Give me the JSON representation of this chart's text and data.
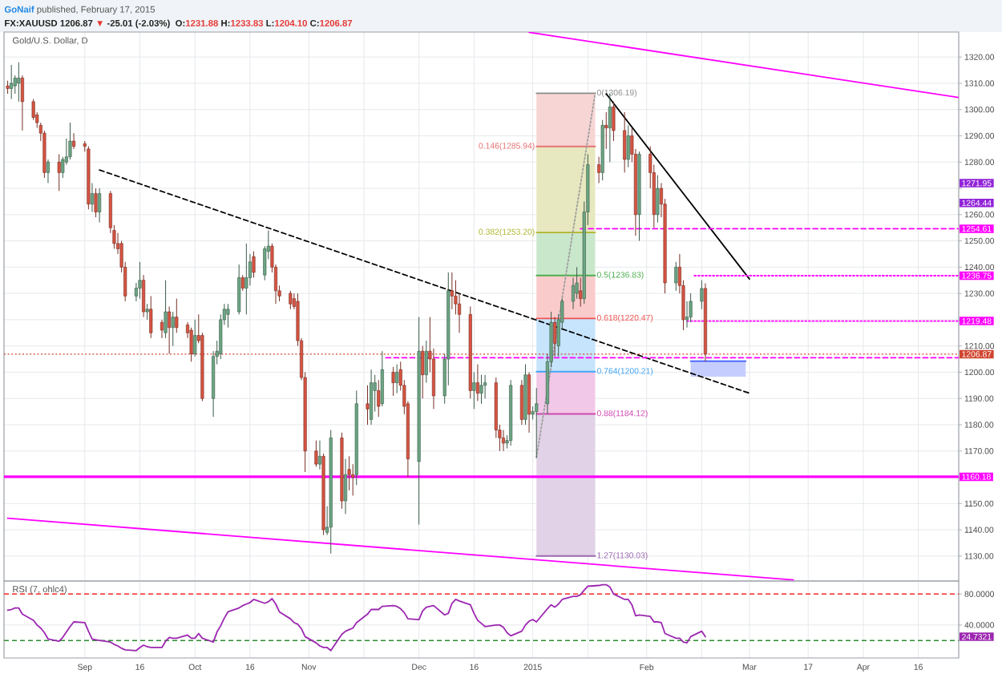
{
  "chart_data": [
    {
      "type": "candlestick",
      "title": "Gold/U.S. Dollar, D",
      "annotations": [
        "GoNaif",
        "published, February 17, 2015",
        "FX:XAUUSD",
        "1206.87",
        "▼",
        "-25.01 (-2.03%)",
        "O:",
        "1231.88",
        "H:",
        "1233.83",
        "L:",
        "1204.10",
        "C:",
        "1206.87",
        "1271.95",
        "1264.44"
      ],
      "x": [
        "2014-08-11",
        "2014-08-12",
        "2014-08-13",
        "2014-08-14",
        "2014-08-15",
        "2014-08-18",
        "2014-08-19",
        "2014-08-20",
        "2014-08-21",
        "2014-08-22",
        "2014-08-25",
        "2014-08-26",
        "2014-08-27",
        "2014-08-28",
        "2014-08-29",
        "2014-09-01",
        "2014-09-02",
        "2014-09-03",
        "2014-09-04",
        "2014-09-05",
        "2014-09-08",
        "2014-09-09",
        "2014-09-10",
        "2014-09-11",
        "2014-09-12",
        "2014-09-15",
        "2014-09-16",
        "2014-09-17",
        "2014-09-18",
        "2014-09-19",
        "2014-09-22",
        "2014-09-23",
        "2014-09-24",
        "2014-09-25",
        "2014-09-26",
        "2014-09-29",
        "2014-09-30",
        "2014-10-01",
        "2014-10-02",
        "2014-10-03",
        "2014-10-06",
        "2014-10-07",
        "2014-10-08",
        "2014-10-09",
        "2014-10-10",
        "2014-10-13",
        "2014-10-14",
        "2014-10-15",
        "2014-10-16",
        "2014-10-17",
        "2014-10-20",
        "2014-10-21",
        "2014-10-22",
        "2014-10-23",
        "2014-10-24",
        "2014-10-27",
        "2014-10-28",
        "2014-10-29",
        "2014-10-30",
        "2014-10-31",
        "2014-11-03",
        "2014-11-04",
        "2014-11-05",
        "2014-11-06",
        "2014-11-07",
        "2014-11-10",
        "2014-11-11",
        "2014-11-12",
        "2014-11-13",
        "2014-11-14",
        "2014-11-17",
        "2014-11-18",
        "2014-11-19",
        "2014-11-20",
        "2014-11-21",
        "2014-11-24",
        "2014-11-25",
        "2014-11-26",
        "2014-11-27",
        "2014-11-28",
        "2014-12-01",
        "2014-12-02",
        "2014-12-03",
        "2014-12-04",
        "2014-12-05",
        "2014-12-08",
        "2014-12-09",
        "2014-12-10",
        "2014-12-11",
        "2014-12-12",
        "2014-12-15",
        "2014-12-16",
        "2014-12-17",
        "2014-12-18",
        "2014-12-19",
        "2014-12-22",
        "2014-12-23",
        "2014-12-24",
        "2014-12-25",
        "2014-12-26",
        "2014-12-29",
        "2014-12-30",
        "2014-12-31",
        "2015-01-01",
        "2015-01-02",
        "2015-01-05",
        "2015-01-06",
        "2015-01-07",
        "2015-01-08",
        "2015-01-09",
        "2015-01-12",
        "2015-01-13",
        "2015-01-14",
        "2015-01-15",
        "2015-01-16",
        "2015-01-19",
        "2015-01-20",
        "2015-01-21",
        "2015-01-22",
        "2015-01-23",
        "2015-01-26",
        "2015-01-27",
        "2015-01-28",
        "2015-01-29",
        "2015-01-30",
        "2015-02-02",
        "2015-02-03",
        "2015-02-04",
        "2015-02-05",
        "2015-02-06",
        "2015-02-09",
        "2015-02-10",
        "2015-02-11",
        "2015-02-12",
        "2015-02-13",
        "2015-02-16",
        "2015-02-17"
      ],
      "ohlc": [
        [
          1309,
          1311,
          1306,
          1308
        ],
        [
          1308,
          1317,
          1304,
          1310
        ],
        [
          1309,
          1313,
          1306,
          1312
        ],
        [
          1310,
          1318,
          1303,
          1312
        ],
        [
          1312,
          1313,
          1292,
          1303
        ],
        [
          1303,
          1304,
          1296,
          1297
        ],
        [
          1298,
          1299,
          1293,
          1295
        ],
        [
          1294,
          1295,
          1288,
          1291
        ],
        [
          1291,
          1292,
          1274,
          1276
        ],
        [
          1276,
          1281,
          1272,
          1280
        ],
        [
          1280,
          1283,
          1269,
          1276
        ],
        [
          1276,
          1282,
          1274,
          1281
        ],
        [
          1280,
          1289,
          1279,
          1282
        ],
        [
          1282,
          1295,
          1281,
          1288
        ],
        [
          1288,
          1291,
          1285,
          1286
        ],
        [
          1287,
          1288,
          1284,
          1286
        ],
        [
          1285,
          1286,
          1262,
          1264
        ],
        [
          1264,
          1272,
          1261,
          1268
        ],
        [
          1268,
          1270,
          1259,
          1261
        ],
        [
          1261,
          1270,
          1257,
          1268
        ],
        [
          1268,
          1269,
          1253,
          1255
        ],
        [
          1254,
          1256,
          1247,
          1249
        ],
        [
          1249,
          1253,
          1245,
          1247
        ],
        [
          1249,
          1250,
          1238,
          1240
        ],
        [
          1240,
          1242,
          1227,
          1229
        ],
        [
          1229,
          1234,
          1227,
          1232
        ],
        [
          1232,
          1242,
          1228,
          1235
        ],
        [
          1235,
          1237,
          1221,
          1223
        ],
        [
          1223,
          1226,
          1220,
          1224
        ],
        [
          1224,
          1229,
          1213,
          1215
        ],
        [
          1219,
          1220,
          1213,
          1216
        ],
        [
          1215,
          1235,
          1213,
          1223
        ],
        [
          1223,
          1225,
          1207,
          1217
        ],
        [
          1217,
          1223,
          1210,
          1221
        ],
        [
          1221,
          1228,
          1215,
          1217
        ],
        [
          1218,
          1219,
          1213,
          1215
        ],
        [
          1216,
          1217,
          1204,
          1207
        ],
        [
          1207,
          1220,
          1206,
          1214
        ],
        [
          1214,
          1222,
          1211,
          1212
        ],
        [
          1214,
          1215,
          1189,
          1190
        ],
        [
          1190,
          1208,
          1183,
          1206
        ],
        [
          1206,
          1212,
          1203,
          1208
        ],
        [
          1207,
          1222,
          1205,
          1220
        ],
        [
          1220,
          1226,
          1218,
          1224
        ],
        [
          1222,
          1226,
          1217,
          1224
        ],
        [
          1223,
          1241,
          1222,
          1236
        ],
        [
          1236,
          1237,
          1231,
          1232
        ],
        [
          1232,
          1249,
          1222,
          1236
        ],
        [
          1236,
          1245,
          1233,
          1242
        ],
        [
          1244,
          1246,
          1236,
          1238
        ],
        [
          1237,
          1248,
          1235,
          1247
        ],
        [
          1246,
          1254,
          1243,
          1248
        ],
        [
          1248,
          1249,
          1238,
          1240
        ],
        [
          1240,
          1241,
          1226,
          1231
        ],
        [
          1231,
          1233,
          1227,
          1229
        ],
        [
          1230,
          1231,
          1224,
          1226
        ],
        [
          1228,
          1230,
          1224,
          1225
        ],
        [
          1227,
          1230,
          1210,
          1212
        ],
        [
          1212,
          1213,
          1197,
          1198
        ],
        [
          1198,
          1200,
          1162,
          1170
        ],
        [
          1170,
          1174,
          1164,
          1165
        ],
        [
          1165,
          1174,
          1163,
          1168
        ],
        [
          1168,
          1169,
          1138,
          1140
        ],
        [
          1139,
          1149,
          1138,
          1141
        ],
        [
          1141,
          1178,
          1131,
          1175
        ],
        [
          1175,
          1177,
          1148,
          1151
        ],
        [
          1151,
          1167,
          1146,
          1161
        ],
        [
          1163,
          1168,
          1155,
          1161
        ],
        [
          1161,
          1165,
          1153,
          1160
        ],
        [
          1161,
          1193,
          1157,
          1188
        ],
        [
          1188,
          1195,
          1180,
          1186
        ],
        [
          1182,
          1201,
          1180,
          1196
        ],
        [
          1193,
          1199,
          1185,
          1196
        ],
        [
          1193,
          1197,
          1183,
          1187
        ],
        [
          1188,
          1208,
          1187,
          1201
        ],
        [
          1200,
          1202,
          1191,
          1196
        ],
        [
          1196,
          1203,
          1192,
          1200
        ],
        [
          1201,
          1204,
          1193,
          1195
        ],
        [
          1195,
          1197,
          1184,
          1187
        ],
        [
          1188,
          1189,
          1160,
          1167
        ],
        [
          1166,
          1221,
          1142,
          1208
        ],
        [
          1208,
          1210,
          1190,
          1199
        ],
        [
          1199,
          1212,
          1196,
          1208
        ],
        [
          1208,
          1221,
          1200,
          1205
        ],
        [
          1205,
          1209,
          1186,
          1191
        ],
        [
          1191,
          1207,
          1188,
          1205
        ],
        [
          1205,
          1238,
          1195,
          1231
        ],
        [
          1231,
          1238,
          1224,
          1229
        ],
        [
          1229,
          1235,
          1222,
          1226
        ],
        [
          1226,
          1230,
          1215,
          1222
        ],
        [
          1222,
          1225,
          1190,
          1193
        ],
        [
          1193,
          1200,
          1186,
          1196
        ],
        [
          1196,
          1203,
          1189,
          1192
        ],
        [
          1192,
          1199,
          1188,
          1195
        ],
        [
          1195,
          1199,
          1190,
          1196
        ],
        [
          1196,
          1198,
          1175,
          1178
        ],
        [
          1178,
          1180,
          1170,
          1175
        ],
        [
          1175,
          1178,
          1170,
          1173
        ],
        [
          1173,
          1176,
          1171,
          1174
        ],
        [
          1174,
          1197,
          1172,
          1195
        ],
        [
          1195,
          1197,
          1180,
          1182
        ],
        [
          1182,
          1203,
          1180,
          1199
        ],
        [
          1199,
          1200,
          1177,
          1184
        ],
        [
          1184,
          1187,
          1182,
          1185
        ],
        [
          1185,
          1194,
          1167.47,
          1188
        ],
        [
          1188,
          1207,
          1184,
          1204
        ],
        [
          1204,
          1223,
          1202,
          1219
        ],
        [
          1219,
          1221,
          1206,
          1211
        ],
        [
          1210,
          1222,
          1206,
          1220
        ],
        [
          1219,
          1228,
          1216,
          1227
        ],
        [
          1227,
          1236,
          1224,
          1233
        ],
        [
          1230,
          1240,
          1228,
          1234
        ],
        [
          1231,
          1236,
          1225,
          1228
        ],
        [
          1228,
          1265,
          1226,
          1261
        ],
        [
          1261,
          1283,
          1256,
          1279
        ],
        [
          1279,
          1282,
          1272,
          1276
        ],
        [
          1276,
          1296,
          1273,
          1294
        ],
        [
          1294,
          1299,
          1285,
          1293
        ],
        [
          1293,
          1306.19,
          1280,
          1301
        ],
        [
          1301,
          1303,
          1288,
          1292
        ],
        [
          1292,
          1299,
          1276,
          1281
        ],
        [
          1281,
          1294,
          1278,
          1290
        ],
        [
          1290,
          1293,
          1280,
          1283
        ],
        [
          1283,
          1285,
          1252,
          1260
        ],
        [
          1260,
          1284,
          1250,
          1283
        ],
        [
          1283,
          1286,
          1270,
          1276
        ],
        [
          1276,
          1279,
          1255,
          1260
        ],
        [
          1260,
          1275,
          1257,
          1270
        ],
        [
          1270,
          1272,
          1259,
          1264
        ],
        [
          1264,
          1266,
          1230,
          1234
        ],
        [
          1234,
          1242,
          1231,
          1240
        ],
        [
          1240,
          1245,
          1230,
          1233
        ],
        [
          1233,
          1235,
          1216,
          1220
        ],
        [
          1220,
          1227,
          1217,
          1221
        ],
        [
          1221,
          1230,
          1219,
          1227
        ],
        [
          1227,
          1235,
          1224,
          1231.88
        ],
        [
          1231.88,
          1233.83,
          1204.1,
          1206.87
        ]
      ],
      "colors": [
        "#d75442",
        "#6ba583",
        "#6ba583",
        "#6ba583",
        "#d75442",
        "#d75442",
        "#d75442",
        "#d75442",
        "#d75442",
        "#6ba583",
        "#d75442",
        "#6ba583",
        "#6ba583",
        "#6ba583",
        "#d75442",
        "#d75442",
        "#d75442",
        "#6ba583",
        "#d75442",
        "#6ba583",
        "#d75442",
        "#d75442",
        "#d75442",
        "#d75442",
        "#d75442",
        "#6ba583",
        "#6ba583",
        "#d75442",
        "#6ba583",
        "#d75442",
        "#d75442",
        "#6ba583",
        "#d75442",
        "#6ba583",
        "#d75442",
        "#d75442",
        "#d75442",
        "#6ba583",
        "#d75442",
        "#d75442",
        "#6ba583",
        "#6ba583",
        "#6ba583",
        "#6ba583",
        "#6ba583",
        "#6ba583",
        "#d75442",
        "#6ba583",
        "#6ba583",
        "#d75442",
        "#6ba583",
        "#6ba583",
        "#d75442",
        "#d75442",
        "#d75442",
        "#d75442",
        "#d75442",
        "#d75442",
        "#d75442",
        "#d75442",
        "#d75442",
        "#6ba583",
        "#d75442",
        "#6ba583",
        "#6ba583",
        "#d75442",
        "#6ba583",
        "#d75442",
        "#d75442",
        "#6ba583",
        "#d75442",
        "#6ba583",
        "#6ba583",
        "#d75442",
        "#6ba583",
        "#d75442",
        "#6ba583",
        "#d75442",
        "#d75442",
        "#d75442",
        "#6ba583",
        "#d75442",
        "#6ba583",
        "#d75442",
        "#d75442",
        "#6ba583",
        "#6ba583",
        "#d75442",
        "#d75442",
        "#d75442",
        "#d75442",
        "#6ba583",
        "#d75442",
        "#6ba583",
        "#6ba583",
        "#d75442",
        "#d75442",
        "#d75442",
        "#6ba583",
        "#6ba583",
        "#d75442",
        "#6ba583",
        "#d75442",
        "#6ba583",
        "#6ba583",
        "#6ba583",
        "#6ba583",
        "#d75442",
        "#6ba583",
        "#6ba583",
        "#6ba583",
        "#6ba583",
        "#d75442",
        "#6ba583",
        "#6ba583",
        "#d75442",
        "#6ba583",
        "#d75442",
        "#6ba583",
        "#d75442",
        "#d75442",
        "#6ba583",
        "#d75442",
        "#d75442",
        "#6ba583",
        "#d75442",
        "#d75442",
        "#6ba583",
        "#d75442",
        "#d75442",
        "#6ba583",
        "#d75442",
        "#d75442",
        "#6ba583",
        "#6ba583",
        "#6ba583",
        "#d75442"
      ],
      "series": [
        {
          "type": "line",
          "x": [
            "2015-01-02",
            "2015-01-18"
          ],
          "values": [
            1306.19,
            1306.19
          ],
          "color": "#8c8c8c",
          "name": "0(1306.19)"
        },
        {
          "type": "line",
          "x": [
            "2015-01-02",
            "2015-01-18"
          ],
          "values": [
            1285.94,
            1285.94
          ],
          "lower": [
            1285.94,
            1285.94
          ],
          "upper": [
            1306.19,
            1306.19
          ],
          "color": "#e57373",
          "name": "0.146(1285.94)"
        },
        {
          "type": "line",
          "x": [
            "2015-01-02",
            "2015-01-18"
          ],
          "values": [
            1253.2,
            1253.2
          ],
          "lower": [
            1253.2,
            1253.2
          ],
          "upper": [
            1285.94,
            1285.94
          ],
          "color": "#afb42b",
          "name": "0.382(1253.20)"
        },
        {
          "type": "line",
          "x": [
            "2015-01-02",
            "2015-01-18"
          ],
          "values": [
            1236.83,
            1236.83
          ],
          "lower": [
            1236.83,
            1236.83
          ],
          "upper": [
            1253.2,
            1253.2
          ],
          "color": "#4caf50",
          "name": "0.5(1236.83)"
        },
        {
          "type": "line",
          "x": [
            "2015-01-02",
            "2015-01-18"
          ],
          "values": [
            1220.47,
            1220.47
          ],
          "lower": [
            1220.47,
            1220.47
          ],
          "upper": [
            1236.83,
            1236.83
          ],
          "color": "#ef5350",
          "name": "0.618(1220.47)"
        },
        {
          "type": "line",
          "x": [
            "2015-01-02",
            "2015-01-18"
          ],
          "values": [
            1200.21,
            1200.21
          ],
          "lower": [
            1200.21,
            1200.21
          ],
          "upper": [
            1220.47,
            1220.47
          ],
          "color": "#42a5f5",
          "name": "0.764(1200.21)"
        },
        {
          "type": "line",
          "x": [
            "2015-01-02",
            "2015-01-18"
          ],
          "values": [
            1184.12,
            1184.12
          ],
          "lower": [
            1184.12,
            1184.12
          ],
          "upper": [
            1200.21,
            1200.21
          ],
          "color": "#d048b0",
          "name": "0.88(1184.12)"
        },
        {
          "type": "line",
          "x": [
            "2015-01-02",
            "2015-01-18"
          ],
          "values": [
            1130.03,
            1130.03
          ],
          "lower": [
            1130.03,
            1130.03
          ],
          "upper": [
            1184.12,
            1184.12
          ],
          "color": "#9c6ab0",
          "name": "1.27(1130.03)"
        },
        {
          "type": "line",
          "x": [
            "2015-01-02",
            "2015-01-18"
          ],
          "values": [
            1167.47,
            1306.19
          ],
          "color": "#9e9e9e",
          "line_style": "dotted"
        },
        {
          "type": "line",
          "x": [
            "2014-09-05",
            "2015-03-01"
          ],
          "values": [
            1277,
            1192
          ],
          "color": "#000000",
          "line_style": "dashed"
        },
        {
          "type": "line",
          "x": [
            "2015-01-21",
            "2015-03-01"
          ],
          "values": [
            1306,
            1235.5
          ],
          "color": "#000000",
          "line_style": "solid"
        },
        {
          "type": "line",
          "x": [
            "2014-12-31",
            "2015-04-27"
          ],
          "values": [
            1329.4,
            1304.6
          ],
          "color": "#ff00ff",
          "line_style": "solid"
        },
        {
          "type": "line",
          "x": [
            "2014-08-11",
            "2015-03-13"
          ],
          "values": [
            1144.4,
            1120.9
          ],
          "color": "#ff00ff",
          "line_style": "solid"
        },
        {
          "type": "line",
          "x": [
            "2015-01-14",
            "2015-04-27"
          ],
          "values": [
            1254.61,
            1254.61
          ],
          "color": "#ff00ff",
          "line_style": "dashed",
          "name": "1254.61"
        },
        {
          "type": "line",
          "x": [
            "2015-02-14",
            "2015-04-27"
          ],
          "values": [
            1236.75,
            1236.75
          ],
          "color": "#ff00ff",
          "line_style": "dotted",
          "name": "1236.75"
        },
        {
          "type": "line",
          "x": [
            "2015-02-12",
            "2015-04-27"
          ],
          "values": [
            1219.48,
            1219.48
          ],
          "color": "#ff00ff",
          "line_style": "dotted",
          "name": "1219.48"
        },
        {
          "type": "line",
          "x": [
            "2014-11-22",
            "2015-04-27"
          ],
          "values": [
            1205.5,
            1205.5
          ],
          "color": "#ff00ff",
          "line_style": "dashed"
        },
        {
          "type": "line",
          "x": [
            "2015-02-13",
            "2015-02-28"
          ],
          "values": [
            1204.2,
            1204.2
          ],
          "lower": [
            1198.3,
            1198.3
          ],
          "upper": [
            1204.2,
            1204.2
          ],
          "color": "#3d5afe"
        }
      ],
      "ref_lines": [
        {
          "axis": "y",
          "value": 1206.87,
          "label": "1206.87",
          "color": "#d0452f",
          "line_style": "dotted"
        },
        {
          "axis": "y",
          "value": 1160.18,
          "label": "1160.18",
          "color": "#ff00ff",
          "line_style": "solid"
        }
      ],
      "xlim": [
        "2014-08-10",
        "2015-04-27"
      ],
      "xticks": [
        {
          "value": "2014-09-01",
          "label": null
        },
        {
          "value": "2014-09-16",
          "label": null
        },
        {
          "value": "2014-10-01",
          "label": null
        },
        {
          "value": "2014-10-16",
          "label": null
        },
        {
          "value": "2014-11-01",
          "label": null
        },
        {
          "value": "2014-11-16",
          "label": null
        },
        {
          "value": "2014-12-01",
          "label": null
        },
        {
          "value": "2014-12-16",
          "label": null
        },
        {
          "value": "2015-01-01",
          "label": null
        },
        {
          "value": "2015-01-16",
          "label": null
        },
        {
          "value": "2015-02-01",
          "label": null
        },
        {
          "value": "2015-02-16",
          "label": null
        },
        {
          "value": "2015-03-01",
          "label": null
        },
        {
          "value": "2015-03-17",
          "label": null
        },
        {
          "value": "2015-04-01",
          "label": null
        },
        {
          "value": "2015-04-16",
          "label": null
        }
      ],
      "ylim": [
        1120.5,
        1329.5
      ],
      "yticks": [
        {
          "value": 1130,
          "label": "1130.00"
        },
        {
          "value": 1140,
          "label": "1140.00"
        },
        {
          "value": 1150,
          "label": "1150.00"
        },
        {
          "value": 1160,
          "label": null
        },
        {
          "value": 1170,
          "label": "1170.00"
        },
        {
          "value": 1180,
          "label": "1180.00"
        },
        {
          "value": 1190,
          "label": "1190.00"
        },
        {
          "value": 1200,
          "label": "1200.00"
        },
        {
          "value": 1210,
          "label": "1210.00"
        },
        {
          "value": 1220,
          "label": null
        },
        {
          "value": 1230,
          "label": "1230.00"
        },
        {
          "value": 1240,
          "label": "1240.00"
        },
        {
          "value": 1250,
          "label": "1250.00"
        },
        {
          "value": 1260,
          "label": "1260.00"
        },
        {
          "value": 1270,
          "label": null
        },
        {
          "value": 1280,
          "label": "1280.00"
        },
        {
          "value": 1290,
          "label": "1290.00"
        },
        {
          "value": 1300,
          "label": "1300.00"
        },
        {
          "value": 1310,
          "label": "1310.00"
        },
        {
          "value": 1320,
          "label": "1320.00"
        }
      ],
      "tick_labels": "y",
      "grid": true
    },
    {
      "type": "line",
      "title": "RSI (7, ohlc4)",
      "annotations": [
        "24.7321"
      ],
      "x": [
        "2014-08-11",
        "2014-08-12",
        "2014-08-13",
        "2014-08-14",
        "2014-08-15",
        "2014-08-18",
        "2014-08-19",
        "2014-08-20",
        "2014-08-21",
        "2014-08-22",
        "2014-08-25",
        "2014-08-26",
        "2014-08-27",
        "2014-08-28",
        "2014-08-29",
        "2014-09-01",
        "2014-09-02",
        "2014-09-03",
        "2014-09-04",
        "2014-09-05",
        "2014-09-08",
        "2014-09-09",
        "2014-09-10",
        "2014-09-11",
        "2014-09-12",
        "2014-09-15",
        "2014-09-16",
        "2014-09-17",
        "2014-09-18",
        "2014-09-19",
        "2014-09-22",
        "2014-09-23",
        "2014-09-24",
        "2014-09-25",
        "2014-09-26",
        "2014-09-29",
        "2014-09-30",
        "2014-10-01",
        "2014-10-02",
        "2014-10-03",
        "2014-10-06",
        "2014-10-07",
        "2014-10-08",
        "2014-10-09",
        "2014-10-10",
        "2014-10-13",
        "2014-10-14",
        "2014-10-15",
        "2014-10-16",
        "2014-10-17",
        "2014-10-20",
        "2014-10-21",
        "2014-10-22",
        "2014-10-23",
        "2014-10-24",
        "2014-10-27",
        "2014-10-28",
        "2014-10-29",
        "2014-10-30",
        "2014-10-31",
        "2014-11-03",
        "2014-11-04",
        "2014-11-05",
        "2014-11-06",
        "2014-11-07",
        "2014-11-10",
        "2014-11-11",
        "2014-11-12",
        "2014-11-13",
        "2014-11-14",
        "2014-11-17",
        "2014-11-18",
        "2014-11-19",
        "2014-11-20",
        "2014-11-21",
        "2014-11-24",
        "2014-11-25",
        "2014-11-26",
        "2014-11-27",
        "2014-11-28",
        "2014-12-01",
        "2014-12-02",
        "2014-12-03",
        "2014-12-04",
        "2014-12-05",
        "2014-12-08",
        "2014-12-09",
        "2014-12-10",
        "2014-12-11",
        "2014-12-12",
        "2014-12-15",
        "2014-12-16",
        "2014-12-17",
        "2014-12-18",
        "2014-12-19",
        "2014-12-22",
        "2014-12-23",
        "2014-12-24",
        "2014-12-25",
        "2014-12-26",
        "2014-12-29",
        "2014-12-30",
        "2014-12-31",
        "2015-01-01",
        "2015-01-02",
        "2015-01-05",
        "2015-01-06",
        "2015-01-07",
        "2015-01-08",
        "2015-01-09",
        "2015-01-12",
        "2015-01-13",
        "2015-01-14",
        "2015-01-15",
        "2015-01-16",
        "2015-01-19",
        "2015-01-20",
        "2015-01-21",
        "2015-01-22",
        "2015-01-23",
        "2015-01-26",
        "2015-01-27",
        "2015-01-28",
        "2015-01-29",
        "2015-01-30",
        "2015-02-02",
        "2015-02-03",
        "2015-02-04",
        "2015-02-05",
        "2015-02-06",
        "2015-02-09",
        "2015-02-10",
        "2015-02-11",
        "2015-02-12",
        "2015-02-13",
        "2015-02-16",
        "2015-02-17"
      ],
      "values": [
        59,
        60,
        62,
        62,
        54,
        46,
        40,
        36,
        30,
        22,
        19,
        24,
        31,
        38,
        44,
        43,
        32,
        22,
        21,
        20,
        18,
        15,
        13,
        10,
        8,
        7,
        11,
        14,
        12,
        11,
        11,
        19,
        24,
        23,
        23,
        27,
        23,
        23,
        29,
        23,
        18,
        31,
        39,
        49,
        57,
        62,
        65,
        67,
        69,
        73,
        68,
        70,
        74,
        67,
        57,
        48,
        43,
        41,
        35,
        25,
        17,
        13,
        11,
        11,
        7,
        28,
        32,
        34,
        36,
        43,
        54,
        60,
        60,
        60,
        64,
        65,
        64,
        61,
        56,
        48,
        47,
        58,
        63,
        64,
        65,
        53,
        55,
        68,
        73,
        71,
        66,
        55,
        46,
        42,
        38,
        40,
        40,
        37,
        30,
        26,
        32,
        40,
        45,
        47,
        44,
        61,
        66,
        63,
        67,
        73,
        77,
        77,
        79,
        85,
        90,
        91,
        92,
        92,
        89,
        80,
        73,
        73,
        66,
        52,
        53,
        51,
        44,
        44,
        43,
        29,
        23,
        23,
        18,
        17,
        25,
        32,
        25
      ],
      "color": "#9c27b0",
      "ref_lines": [
        {
          "axis": "y",
          "value": 80,
          "color": "#ff0000",
          "line_style": "dashed"
        },
        {
          "axis": "y",
          "value": 20,
          "color": "#2e8b2e",
          "line_style": "dashed"
        }
      ],
      "xlim": [
        "2014-08-10",
        "2015-04-27"
      ],
      "xticks": [
        {
          "value": "2014-09-01",
          "label": "Sep"
        },
        {
          "value": "2014-09-16",
          "label": "16"
        },
        {
          "value": "2014-10-01",
          "label": "Oct"
        },
        {
          "value": "2014-10-16",
          "label": "16"
        },
        {
          "value": "2014-11-01",
          "label": "Nov"
        },
        {
          "value": "2014-11-16",
          "label": null
        },
        {
          "value": "2014-12-01",
          "label": "Dec"
        },
        {
          "value": "2014-12-16",
          "label": "16"
        },
        {
          "value": "2015-01-01",
          "label": "2015"
        },
        {
          "value": "2015-01-16",
          "label": null
        },
        {
          "value": "2015-02-01",
          "label": "Feb"
        },
        {
          "value": "2015-02-16",
          "label": null
        },
        {
          "value": "2015-03-01",
          "label": "Mar"
        },
        {
          "value": "2015-03-17",
          "label": "17"
        },
        {
          "value": "2015-04-01",
          "label": "Apr"
        },
        {
          "value": "2015-04-16",
          "label": "16"
        }
      ],
      "ylim": [
        -2.5,
        96.7
      ],
      "yticks": [
        {
          "value": 80,
          "label": "80.0000"
        },
        {
          "value": 40,
          "label": "40.0000"
        }
      ],
      "grid": true
    }
  ]
}
